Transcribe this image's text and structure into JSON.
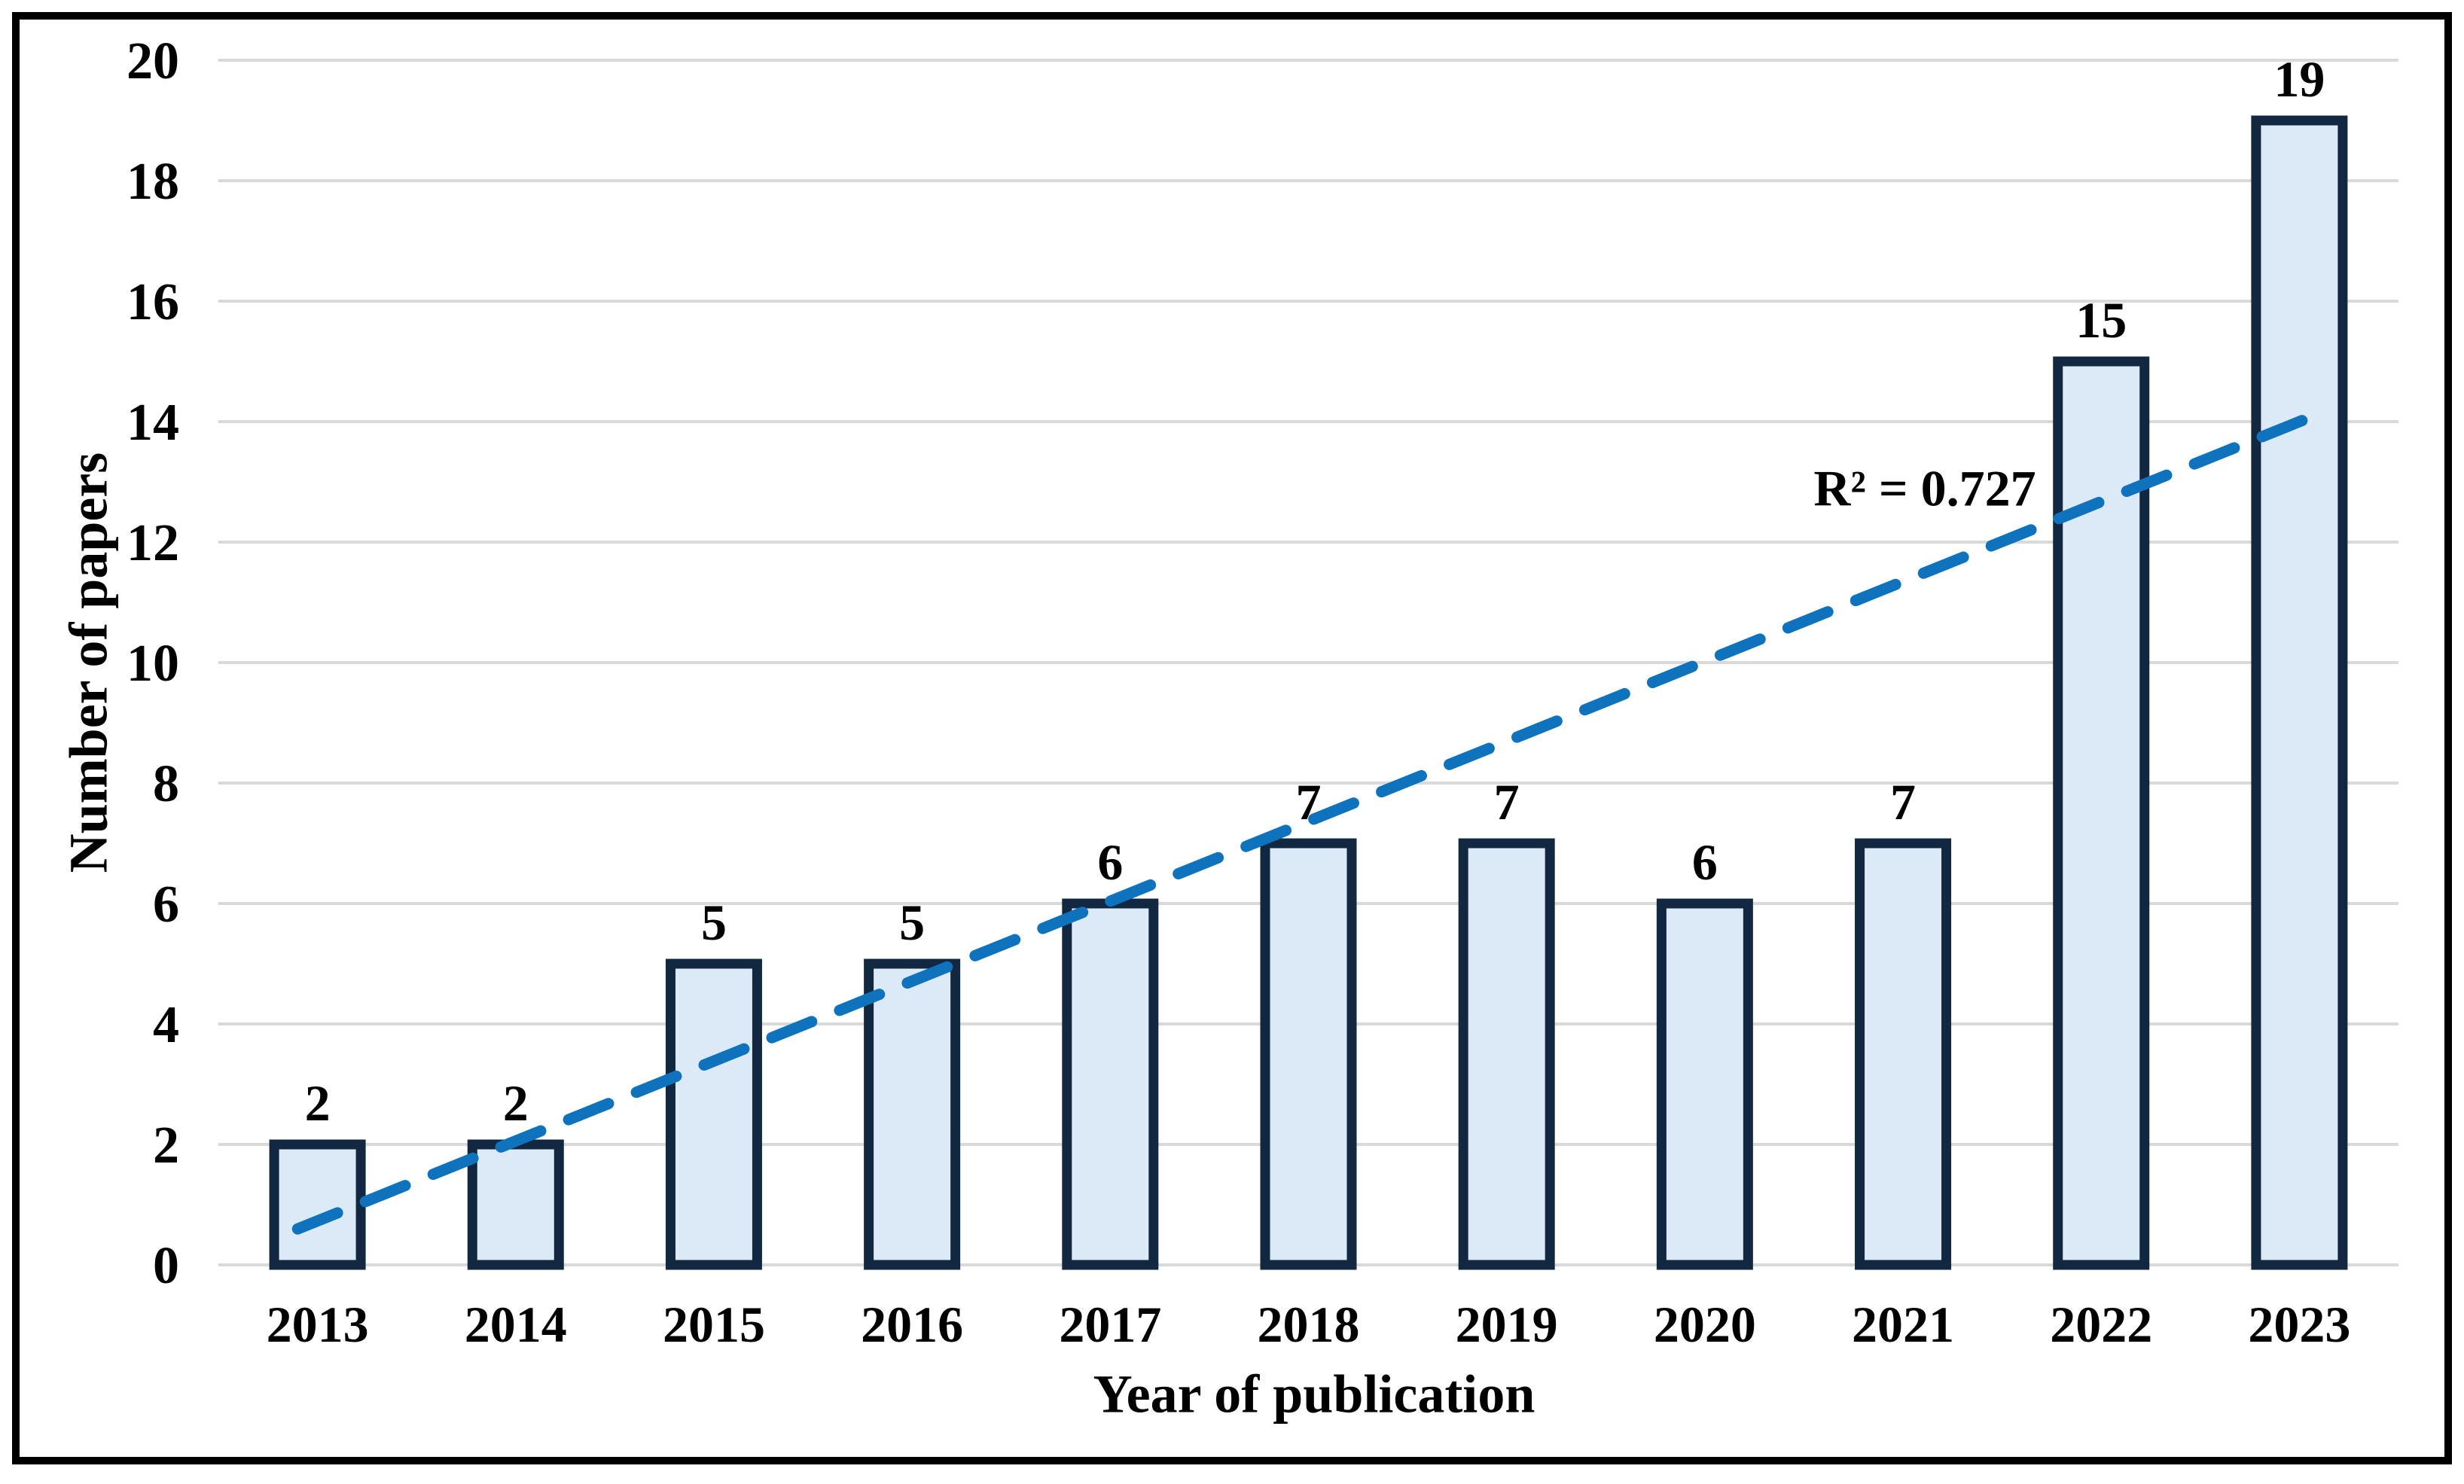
{
  "chart_data": {
    "type": "bar",
    "title": "",
    "categories": [
      "2013",
      "2014",
      "2015",
      "2016",
      "2017",
      "2018",
      "2019",
      "2020",
      "2021",
      "2022",
      "2023"
    ],
    "values": [
      2,
      2,
      5,
      5,
      6,
      7,
      7,
      6,
      7,
      15,
      19
    ],
    "bar_value_labels": [
      "2",
      "2",
      "5",
      "5",
      "6",
      "7",
      "7",
      "6",
      "7",
      "15",
      "19"
    ],
    "xlabel": "Year of publication",
    "ylabel": "Number of papers",
    "ylim": [
      0,
      20
    ],
    "y_tick_step": 2,
    "y_tick_labels": [
      "0",
      "2",
      "4",
      "6",
      "8",
      "10",
      "12",
      "14",
      "16",
      "18",
      "20"
    ],
    "grid": true,
    "legend": false,
    "trendline": {
      "type": "linear",
      "style": "dashed",
      "label": "R² = 0.727",
      "r_squared": 0.727,
      "start_value": 0.73,
      "end_value": 14.0
    }
  },
  "colors": {
    "bar_fill": "#dce9f6",
    "bar_border": "#122840",
    "trendline": "#0f72bd",
    "gridline": "#d9d9d9",
    "text": "#000000",
    "frame_border": "#000000",
    "background": "#ffffff"
  }
}
